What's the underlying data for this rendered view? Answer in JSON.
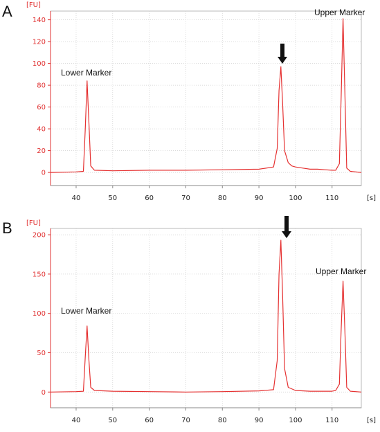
{
  "panels": [
    {
      "letter": "A"
    },
    {
      "letter": "B"
    }
  ],
  "chart_data": [
    {
      "type": "line",
      "title": "",
      "y_unit": "[FU]",
      "x_unit": "[s]",
      "xlim": [
        33,
        118
      ],
      "ylim": [
        -12,
        148
      ],
      "x_ticks": [
        40,
        50,
        60,
        70,
        80,
        90,
        100,
        110
      ],
      "y_ticks": [
        0,
        20,
        40,
        60,
        80,
        100,
        120,
        140
      ],
      "grid": true,
      "line_color": "#e53030",
      "series": [
        {
          "x": [
            33,
            40,
            42,
            42.5,
            43,
            43.5,
            44,
            45,
            50,
            60,
            70,
            80,
            90,
            94,
            95,
            95.5,
            96,
            96.5,
            97,
            98,
            99,
            100,
            102,
            104,
            106,
            108,
            110,
            111,
            112,
            112.5,
            113,
            113.5,
            114,
            115,
            118
          ],
          "y": [
            0,
            0.5,
            1,
            40,
            84,
            45,
            6,
            2,
            1.5,
            2,
            2,
            2.5,
            3,
            5,
            22,
            75,
            97,
            62,
            20,
            9,
            6,
            5,
            4,
            3,
            3,
            2.5,
            2,
            2,
            8,
            70,
            141,
            75,
            4,
            1,
            0
          ]
        }
      ],
      "annotations": [
        {
          "text": "Lower Marker",
          "x": 43,
          "y": 95
        },
        {
          "text": "Upper Marker",
          "x": 113,
          "y": 150
        }
      ],
      "arrow": {
        "x": 96,
        "y": 100
      }
    },
    {
      "type": "line",
      "title": "",
      "y_unit": "[FU]",
      "x_unit": "[s]",
      "xlim": [
        33,
        118
      ],
      "ylim": [
        -20,
        208
      ],
      "x_ticks": [
        40,
        50,
        60,
        70,
        80,
        90,
        100,
        110
      ],
      "y_ticks": [
        0,
        50,
        100,
        150,
        200
      ],
      "grid": true,
      "line_color": "#e53030",
      "series": [
        {
          "x": [
            33,
            40,
            42,
            42.5,
            43,
            43.5,
            44,
            45,
            50,
            60,
            70,
            80,
            90,
            94,
            95,
            95.5,
            96,
            96.5,
            97,
            98,
            100,
            104,
            108,
            110,
            111,
            112,
            112.5,
            113,
            113.5,
            114,
            115,
            118
          ],
          "y": [
            0,
            0.5,
            1,
            45,
            84,
            40,
            6,
            2,
            1,
            0.5,
            0,
            0.5,
            1.5,
            3,
            40,
            150,
            193,
            120,
            30,
            6,
            2,
            1,
            1,
            1,
            2,
            10,
            80,
            141,
            80,
            6,
            1,
            0
          ]
        }
      ],
      "annotations": [
        {
          "text": "Lower Marker",
          "x": 43,
          "y": 100
        },
        {
          "text": "Upper Marker",
          "x": 113,
          "y": 150
        }
      ],
      "arrow": {
        "x": 96,
        "y": 196
      }
    }
  ]
}
